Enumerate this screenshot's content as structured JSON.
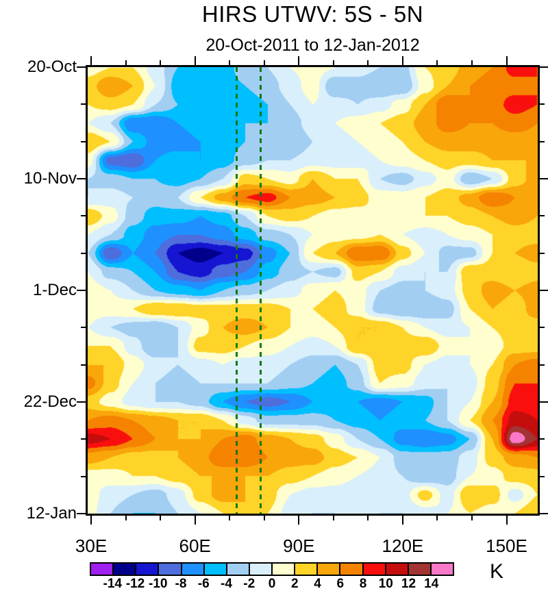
{
  "chart_data": {
    "type": "heatmap",
    "title": "HIRS UTWV: 5S - 5N",
    "subtitle": "20-Oct-2011 to 12-Jan-2012",
    "units": "K",
    "x_axis": {
      "range_lon": [
        29,
        159
      ],
      "major_ticks": [
        {
          "lon": 30,
          "label": "30E"
        },
        {
          "lon": 60,
          "label": "60E"
        },
        {
          "lon": 90,
          "label": "90E"
        },
        {
          "lon": 120,
          "label": "120E"
        },
        {
          "lon": 150,
          "label": "150E"
        }
      ],
      "minor_tick_lons": [
        40,
        50,
        70,
        80,
        100,
        110,
        130,
        140
      ]
    },
    "y_axis": {
      "range_days": [
        0,
        84
      ],
      "start_date": "20-Oct-2011",
      "end_date": "12-Jan-2012",
      "major_ticks": [
        {
          "day": 0,
          "label": "20-Oct"
        },
        {
          "day": 21,
          "label": "10-Nov"
        },
        {
          "day": 42,
          "label": "1-Dec"
        },
        {
          "day": 63,
          "label": "22-Dec"
        },
        {
          "day": 84,
          "label": "12-Jan"
        }
      ],
      "minor_tick_days": [
        7,
        14,
        28,
        35,
        49,
        56,
        70,
        77
      ]
    },
    "colorbar": {
      "unit_label": "K",
      "boundary_labels": [
        "-14",
        "-12",
        "-10",
        "-8",
        "-6",
        "-4",
        "-2",
        "0",
        "2",
        "4",
        "6",
        "8",
        "10",
        "12",
        "14"
      ],
      "levels": [
        -14,
        -12,
        -10,
        -8,
        -6,
        -4,
        -2,
        0,
        2,
        4,
        6,
        8,
        10,
        12,
        14
      ],
      "palette": [
        "#A020F0",
        "#00008B",
        "#1515D2",
        "#4D6EDC",
        "#1E90FF",
        "#00BFFF",
        "#A2CEF2",
        "#D9EFFB",
        "#FEFECE",
        "#FFD428",
        "#F9A60B",
        "#F58300",
        "#FA0F0F",
        "#C40D0D",
        "#A33434",
        "#F978C8"
      ]
    },
    "annotations": {
      "dashed_line_lons": [
        72,
        79
      ],
      "line_color": "#0E7A0E",
      "line_style": "dashed"
    },
    "grid": {
      "lons": [
        29,
        35.5,
        42,
        48.5,
        55,
        61.5,
        68,
        74.5,
        81,
        87.5,
        94,
        100.5,
        107,
        113.5,
        120,
        126.5,
        133,
        139.5,
        146,
        152.5,
        159
      ],
      "days": [
        0,
        3.5,
        7,
        10.5,
        14,
        17.5,
        21,
        24.5,
        28,
        31.5,
        35,
        38.5,
        42,
        45.5,
        49,
        52.5,
        56,
        59.5,
        63,
        66.5,
        70,
        73.5,
        77,
        80.5,
        84
      ],
      "values": [
        [
          1,
          2,
          2,
          -1,
          -4,
          -5,
          -5,
          -3,
          -2,
          0,
          1,
          0,
          -1,
          -2,
          -3,
          2,
          3,
          5,
          6,
          9,
          8
        ],
        [
          3,
          6,
          4,
          0,
          -5,
          -6,
          -5,
          -4,
          -3,
          -1,
          1,
          -4,
          -3,
          -4,
          -4,
          1,
          4,
          6,
          7,
          7,
          8
        ],
        [
          2,
          3,
          2,
          -2,
          -4,
          -5,
          -4,
          -5,
          -4,
          -2,
          0,
          -1,
          -2,
          -1,
          1,
          4,
          8,
          6,
          7,
          9,
          8
        ],
        [
          0,
          -2,
          -8,
          -8,
          -6,
          -5,
          -4,
          -4,
          -4,
          -3,
          -1,
          0,
          1,
          2,
          3,
          5,
          7,
          6,
          6,
          7,
          6
        ],
        [
          4,
          2,
          -4,
          -7,
          -7,
          -6,
          -5,
          -4,
          -3,
          -4,
          -2,
          -1,
          0,
          1,
          2,
          4,
          5,
          5,
          5,
          5,
          5
        ],
        [
          1,
          -9,
          -10,
          -6,
          -5,
          -6,
          -5,
          -3,
          -2,
          -2,
          -1,
          -1,
          -1,
          0,
          1,
          2,
          3,
          3,
          4,
          4,
          4
        ],
        [
          -2,
          -3,
          -4,
          -4,
          -5,
          -4,
          -2,
          3,
          2,
          1,
          4,
          2,
          2,
          -2,
          -3,
          -1,
          1,
          -4,
          -2,
          3,
          5
        ],
        [
          -2,
          -1,
          -2,
          -3,
          -2,
          2,
          5,
          8,
          9,
          6,
          5,
          4,
          3,
          1,
          1,
          2,
          3,
          5,
          8,
          6,
          6
        ],
        [
          4,
          1,
          -3,
          -5,
          -5,
          -6,
          -5,
          -2,
          2,
          3,
          2,
          1,
          1,
          2,
          2,
          2,
          2,
          3,
          4,
          5,
          4
        ],
        [
          0,
          -2,
          -5,
          -7,
          -8,
          -8,
          -7,
          -5,
          -3,
          -2,
          0,
          1,
          1,
          2,
          0,
          -1,
          0,
          1,
          2,
          3,
          3
        ],
        [
          -2,
          -10,
          -6,
          -8,
          -12,
          -13,
          -12,
          -11,
          -7,
          -4,
          2,
          4,
          8,
          8,
          3,
          0,
          -3,
          -3,
          2,
          4,
          5
        ],
        [
          0,
          -3,
          -4,
          -6,
          -10,
          -11,
          -9,
          -8,
          -5,
          -3,
          -2,
          -3,
          3,
          2,
          -1,
          -2,
          -2,
          4,
          3,
          2,
          3
        ],
        [
          1,
          0,
          -2,
          -4,
          -5,
          -6,
          -4,
          -3,
          -2,
          -1,
          1,
          2,
          1,
          -2,
          -3,
          -2,
          -1,
          3,
          5,
          4,
          5
        ],
        [
          1,
          1,
          2,
          4,
          4,
          3,
          3,
          3,
          3,
          2,
          2,
          3,
          1,
          -3,
          -4,
          -4,
          -3,
          2,
          4,
          3,
          5
        ],
        [
          0,
          -2,
          -3,
          -4,
          -2,
          1,
          4,
          5,
          4,
          2,
          1,
          2,
          4,
          4,
          2,
          0,
          -1,
          0,
          2,
          3,
          3
        ],
        [
          2,
          2,
          -1,
          -4,
          -2,
          3,
          3,
          2,
          1,
          0,
          -1,
          0,
          4,
          4,
          3,
          4,
          1,
          0,
          1,
          3,
          3
        ],
        [
          4,
          4,
          1,
          -1,
          -2,
          -1,
          0,
          -1,
          -1,
          -2,
          -3,
          -4,
          -2,
          3,
          3,
          0,
          -1,
          0,
          2,
          6,
          7
        ],
        [
          7,
          3,
          0,
          -2,
          -3,
          -2,
          -2,
          -2,
          -2,
          -3,
          -4,
          -5,
          -3,
          2,
          1,
          -1,
          -2,
          -1,
          3,
          8,
          8
        ],
        [
          3,
          1,
          -1,
          -2,
          -2,
          -3,
          -6,
          -8,
          -9,
          -8,
          -6,
          -5,
          -6,
          -7,
          -6,
          -5,
          -2,
          0,
          4,
          9,
          9
        ],
        [
          6,
          7,
          6,
          5,
          4,
          4,
          2,
          -1,
          -3,
          -3,
          -3,
          -4,
          -5,
          -6,
          -5,
          -4,
          -2,
          2,
          6,
          11,
          10
        ],
        [
          11,
          10,
          8,
          6,
          4,
          4,
          6,
          7,
          5,
          4,
          3,
          1,
          -2,
          -4,
          -7,
          -8,
          -7,
          -4,
          4,
          15.5,
          12
        ],
        [
          5,
          4,
          3,
          3,
          4,
          5,
          8,
          8,
          6,
          5,
          5,
          3,
          2,
          0,
          -3,
          -3,
          -3,
          -1,
          3,
          5,
          6
        ],
        [
          1,
          1,
          2,
          2,
          3,
          4,
          4,
          4,
          4,
          3,
          2,
          1,
          0,
          -1,
          -2,
          -4,
          -3,
          0,
          1,
          3,
          3
        ],
        [
          1,
          -1,
          -2,
          -3,
          -1,
          3,
          5,
          4,
          3,
          0,
          -1,
          -1,
          -2,
          -2,
          -1,
          3,
          -1,
          4,
          3,
          -1,
          2
        ],
        [
          1,
          -2,
          -4,
          -4,
          -2,
          0,
          2,
          4,
          2,
          -1,
          -2,
          -2,
          -1,
          -2,
          -2,
          -1,
          0,
          2,
          1,
          2,
          4
        ]
      ]
    }
  }
}
